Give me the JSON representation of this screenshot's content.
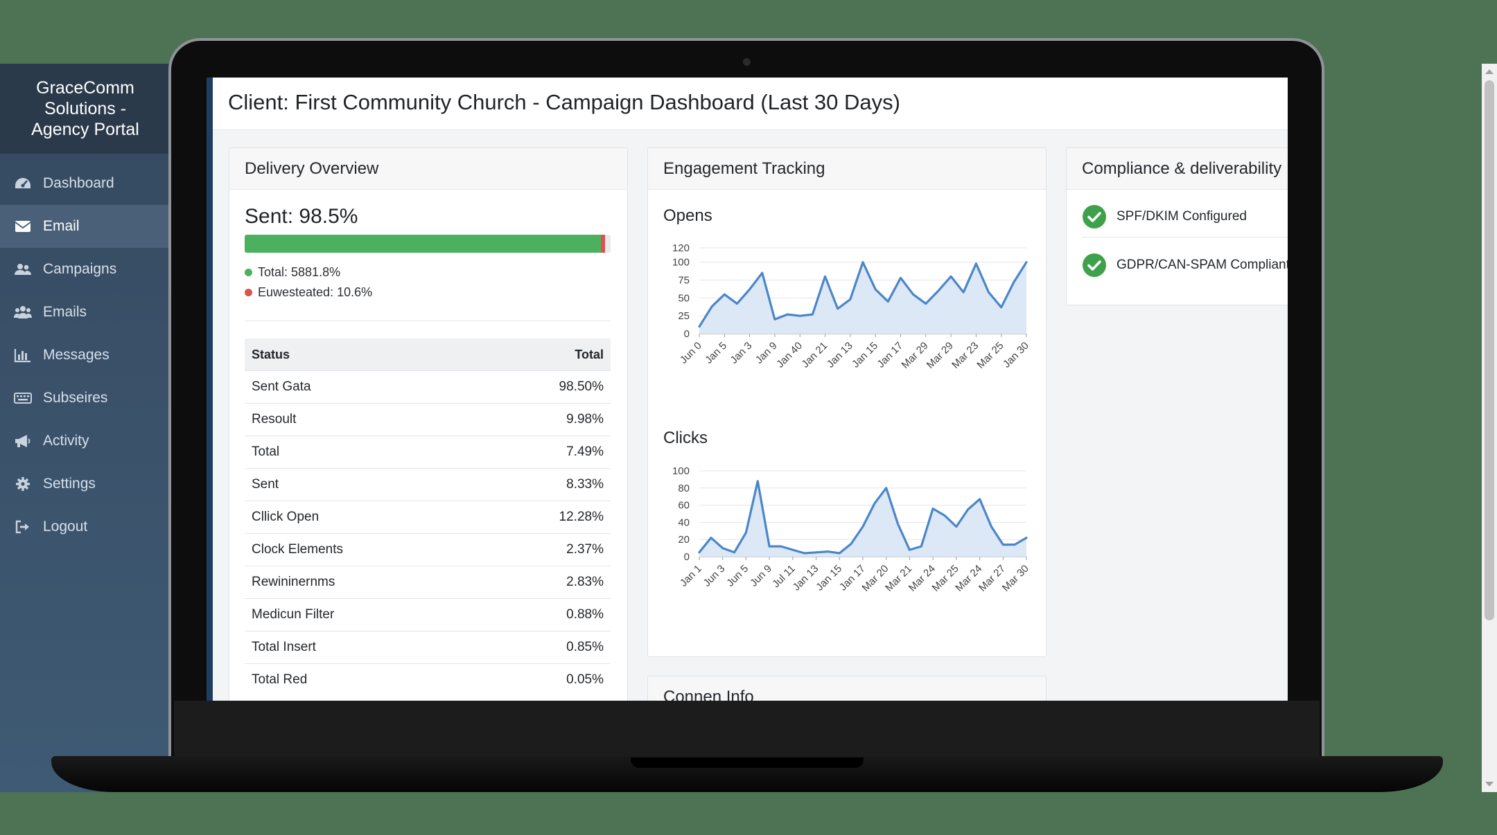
{
  "sidebar": {
    "brand": [
      "GraceComm",
      "Solutions -",
      "Agency Portal"
    ],
    "items": [
      {
        "label": "Dashboard",
        "icon": "dashboard-icon",
        "active": false
      },
      {
        "label": "Email",
        "icon": "envelope-icon",
        "active": true
      },
      {
        "label": "Campaigns",
        "icon": "users-icon",
        "active": false
      },
      {
        "label": "Emails",
        "icon": "group-icon",
        "active": false
      },
      {
        "label": "Messages",
        "icon": "bar-chart-icon",
        "active": false
      },
      {
        "label": "Subseires",
        "icon": "keyboard-icon",
        "active": false
      },
      {
        "label": "Activity",
        "icon": "bullhorn-icon",
        "active": false
      },
      {
        "label": "Settings",
        "icon": "gear-icon",
        "active": false
      },
      {
        "label": "Logout",
        "icon": "logout-icon",
        "active": false
      }
    ]
  },
  "header": {
    "title": "Client: First Community Church - Campaign Dashboard (Last 30 Days)"
  },
  "delivery": {
    "title": "Delivery Overview",
    "sent_label": "Sent: 98.5%",
    "progress": {
      "fill_percent": 98.5,
      "fill_color": "#4cb15e",
      "marker_color": "#d9534f"
    },
    "legend": [
      {
        "label": "Total: 5881.8%",
        "color": "#4cb15e"
      },
      {
        "label": "Euwesteated: 10.6%",
        "color": "#d9534f"
      }
    ],
    "table": {
      "headers": [
        "Status",
        "Total"
      ],
      "rows": [
        [
          "Sent Gata",
          "98.50%"
        ],
        [
          "Resoult",
          "9.98%"
        ],
        [
          "Total",
          "7.49%"
        ],
        [
          "Sent",
          "8.33%"
        ],
        [
          "Cllick Open",
          "12.28%"
        ],
        [
          "Clock Elements",
          "2.37%"
        ],
        [
          "Rewininernms",
          "2.83%"
        ],
        [
          "Medicun Filter",
          "0.88%"
        ],
        [
          "Total Insert",
          "0.85%"
        ],
        [
          "Total Red",
          "0.05%"
        ]
      ]
    }
  },
  "engagement": {
    "title": "Engagement Tracking",
    "line_color": "#4a86c8",
    "fill_color": "#dce8f6"
  },
  "chart_data": [
    {
      "type": "area",
      "title": "Opens",
      "ylim": [
        0,
        120
      ],
      "yticks": [
        0,
        25,
        50,
        75,
        100,
        120
      ],
      "grid": true,
      "x_labels": [
        "Jun 0",
        "Jan 5",
        "Jan 3",
        "Jan 9",
        "Jan 40",
        "Jan 21",
        "Jan 13",
        "Jan 15",
        "Jan 17",
        "Mar 29",
        "Mar 29",
        "Mar 23",
        "Mar 25",
        "Jan 30"
      ],
      "values": [
        10,
        38,
        55,
        42,
        62,
        85,
        20,
        27,
        25,
        27,
        80,
        35,
        48,
        100,
        62,
        45,
        78,
        55,
        42,
        60,
        80,
        58,
        98,
        58,
        37,
        72,
        100
      ]
    },
    {
      "type": "area",
      "title": "Clicks",
      "ylim": [
        0,
        100
      ],
      "yticks": [
        0,
        20,
        40,
        60,
        80,
        100
      ],
      "grid": true,
      "x_labels": [
        "Jan 1",
        "Jun 3",
        "Jun 5",
        "Jun 9",
        "Jul 11",
        "Jan 13",
        "Jan 15",
        "Jan 17",
        "Mar 20",
        "Mar 21",
        "Mar 24",
        "Mar 25",
        "Mar 24",
        "Mar 27",
        "Mar 30"
      ],
      "values": [
        5,
        22,
        10,
        5,
        28,
        88,
        12,
        12,
        8,
        4,
        5,
        6,
        4,
        15,
        35,
        62,
        80,
        38,
        8,
        12,
        56,
        48,
        35,
        55,
        67,
        35,
        14,
        14,
        22
      ]
    }
  ],
  "compliance": {
    "title": "Compliance & deliverability",
    "items": [
      {
        "label": "SPF/DKIM Configured",
        "icon": "check-circle-icon"
      },
      {
        "label": "GDPR/CAN-SPAM Compliant",
        "icon": "check-circle-icon"
      }
    ],
    "check_color": "#3fa14b"
  },
  "info": {
    "title": "Connen Info"
  }
}
